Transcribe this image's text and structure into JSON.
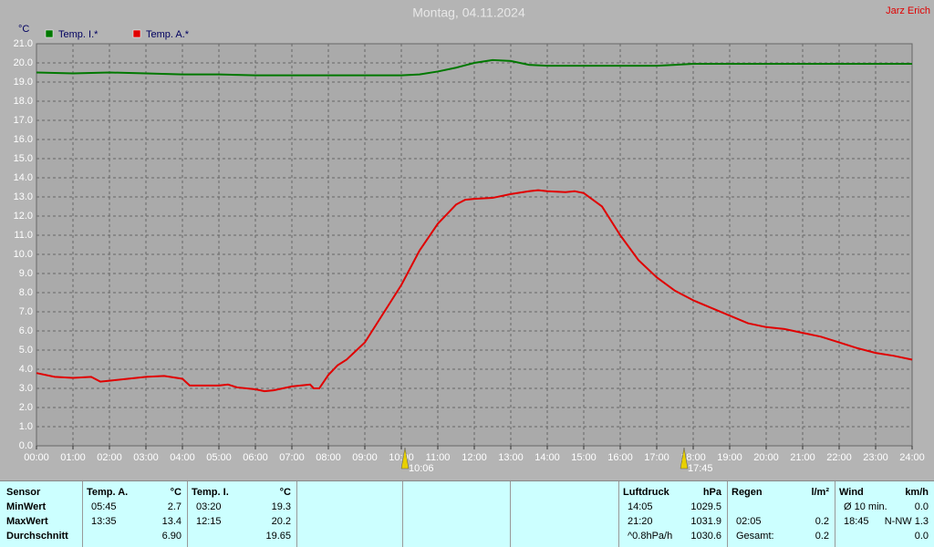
{
  "chart_data": {
    "type": "line",
    "title": "Montag, 04.11.2024",
    "author": "Jarz Erich",
    "y_label": "°C",
    "series": [
      {
        "name": "Temp. I.*",
        "color": "#007800",
        "x": [
          0,
          1,
          2,
          3,
          4,
          5,
          6,
          7,
          8,
          9,
          10,
          10.5,
          11,
          11.5,
          12,
          12.5,
          13,
          13.5,
          14,
          15,
          16,
          17,
          17.5,
          18,
          19,
          20,
          21,
          22,
          23,
          24
        ],
        "values": [
          19.5,
          19.45,
          19.5,
          19.45,
          19.4,
          19.4,
          19.35,
          19.35,
          19.35,
          19.35,
          19.35,
          19.4,
          19.55,
          19.75,
          20.0,
          20.15,
          20.1,
          19.9,
          19.85,
          19.85,
          19.85,
          19.85,
          19.9,
          19.95,
          19.95,
          19.95,
          19.95,
          19.95,
          19.95,
          19.95
        ]
      },
      {
        "name": "Temp. A.*",
        "color": "#e00000",
        "x": [
          0,
          0.5,
          1,
          1.5,
          1.75,
          2,
          2.5,
          3,
          3.5,
          4,
          4.2,
          4.5,
          5,
          5.25,
          5.5,
          6,
          6.25,
          6.5,
          7,
          7.5,
          7.6,
          7.75,
          8,
          8.25,
          8.5,
          9,
          9.5,
          10,
          10.5,
          11,
          11.25,
          11.5,
          11.75,
          12,
          12.5,
          13,
          13.5,
          13.75,
          14,
          14.5,
          14.75,
          15,
          15.5,
          16,
          16.5,
          17,
          17.5,
          18,
          18.5,
          19,
          19.5,
          20,
          20.5,
          21,
          21.5,
          22,
          22.5,
          23,
          23.5,
          24
        ],
        "values": [
          3.8,
          3.6,
          3.55,
          3.6,
          3.35,
          3.4,
          3.5,
          3.6,
          3.65,
          3.5,
          3.15,
          3.15,
          3.15,
          3.2,
          3.05,
          2.95,
          2.85,
          2.9,
          3.1,
          3.2,
          3.0,
          3.0,
          3.7,
          4.2,
          4.5,
          5.4,
          6.9,
          8.4,
          10.2,
          11.6,
          12.1,
          12.6,
          12.85,
          12.9,
          12.95,
          13.15,
          13.3,
          13.35,
          13.3,
          13.25,
          13.3,
          13.2,
          12.5,
          11.0,
          9.7,
          8.8,
          8.1,
          7.6,
          7.2,
          6.8,
          6.4,
          6.2,
          6.1,
          5.9,
          5.7,
          5.4,
          5.1,
          4.85,
          4.7,
          4.5
        ]
      }
    ],
    "xlim": [
      0,
      24
    ],
    "xticks": [
      {
        "value": 0,
        "label": "00:00"
      },
      {
        "value": 1,
        "label": "01:00"
      },
      {
        "value": 2,
        "label": "02:00"
      },
      {
        "value": 3,
        "label": "03:00"
      },
      {
        "value": 4,
        "label": "04:00"
      },
      {
        "value": 5,
        "label": "05:00"
      },
      {
        "value": 6,
        "label": "06:00"
      },
      {
        "value": 7,
        "label": "07:00"
      },
      {
        "value": 8,
        "label": "08:00"
      },
      {
        "value": 9,
        "label": "09:00"
      },
      {
        "value": 10,
        "label": "10:00"
      },
      {
        "value": 11,
        "label": "11:00"
      },
      {
        "value": 12,
        "label": "12:00"
      },
      {
        "value": 13,
        "label": "13:00"
      },
      {
        "value": 14,
        "label": "14:00"
      },
      {
        "value": 15,
        "label": "15:00"
      },
      {
        "value": 16,
        "label": "16:00"
      },
      {
        "value": 17,
        "label": "17:00"
      },
      {
        "value": 18,
        "label": "18:00"
      },
      {
        "value": 19,
        "label": "19:00"
      },
      {
        "value": 20,
        "label": "20:00"
      },
      {
        "value": 21,
        "label": "21:00"
      },
      {
        "value": 22,
        "label": "22:00"
      },
      {
        "value": 23,
        "label": "23:00"
      },
      {
        "value": 24,
        "label": "24:00"
      }
    ],
    "ylim": [
      0,
      21
    ],
    "yticks": [
      {
        "value": 0,
        "label": "0.0"
      },
      {
        "value": 1,
        "label": "1.0"
      },
      {
        "value": 2,
        "label": "2.0"
      },
      {
        "value": 3,
        "label": "3.0"
      },
      {
        "value": 4,
        "label": "4.0"
      },
      {
        "value": 5,
        "label": "5.0"
      },
      {
        "value": 6,
        "label": "6.0"
      },
      {
        "value": 7,
        "label": "7.0"
      },
      {
        "value": 8,
        "label": "8.0"
      },
      {
        "value": 9,
        "label": "9.0"
      },
      {
        "value": 10,
        "label": "10.0"
      },
      {
        "value": 11,
        "label": "11.0"
      },
      {
        "value": 12,
        "label": "12.0"
      },
      {
        "value": 13,
        "label": "13.0"
      },
      {
        "value": 14,
        "label": "14.0"
      },
      {
        "value": 15,
        "label": "15.0"
      },
      {
        "value": 16,
        "label": "16.0"
      },
      {
        "value": 17,
        "label": "17.0"
      },
      {
        "value": 18,
        "label": "18.0"
      },
      {
        "value": 19,
        "label": "19.0"
      },
      {
        "value": 20,
        "label": "20.0"
      },
      {
        "value": 21,
        "label": "21.0"
      }
    ],
    "grid": true,
    "annotations": [
      {
        "x": 10.1,
        "label": "10:06"
      },
      {
        "x": 17.75,
        "label": "17:45"
      }
    ]
  },
  "table": {
    "panels": [
      {
        "rows": [
          {
            "left": "Sensor"
          },
          {
            "left": "MinWert"
          },
          {
            "left": "MaxWert"
          },
          {
            "left": "Durchschnitt"
          }
        ]
      },
      {
        "rows": [
          {
            "left": "Temp. A.",
            "right": "°C"
          },
          {
            "left": "05:45",
            "right": "2.7"
          },
          {
            "left": "13:35",
            "right": "13.4"
          },
          {
            "right": "6.90"
          }
        ]
      },
      {
        "rows": [
          {
            "left": "Temp. I.",
            "right": "°C"
          },
          {
            "left": "03:20",
            "right": "19.3"
          },
          {
            "left": "12:15",
            "right": "20.2"
          },
          {
            "right": "19.65"
          }
        ]
      },
      {
        "rows": [
          {
            "left": "Luftdruck",
            "right": "hPa"
          },
          {
            "left": "14:05",
            "right": "1029.5"
          },
          {
            "left": "21:20",
            "right": "1031.9"
          },
          {
            "left": "^0.8hPa/h",
            "right": "1030.6"
          }
        ]
      },
      {
        "rows": [
          {
            "left": "Regen",
            "right": "l/m²"
          },
          {},
          {
            "left": "02:05",
            "right": "0.2"
          },
          {
            "left": "Gesamt:",
            "right": "0.2"
          }
        ]
      },
      {
        "rows": [
          {
            "left": "Wind",
            "right": "km/h"
          },
          {
            "left": "Ø 10 min.",
            "right": "0.0"
          },
          {
            "left": "18:45",
            "right": "N-NW 1.3"
          },
          {
            "right": "0.0"
          }
        ]
      }
    ]
  }
}
